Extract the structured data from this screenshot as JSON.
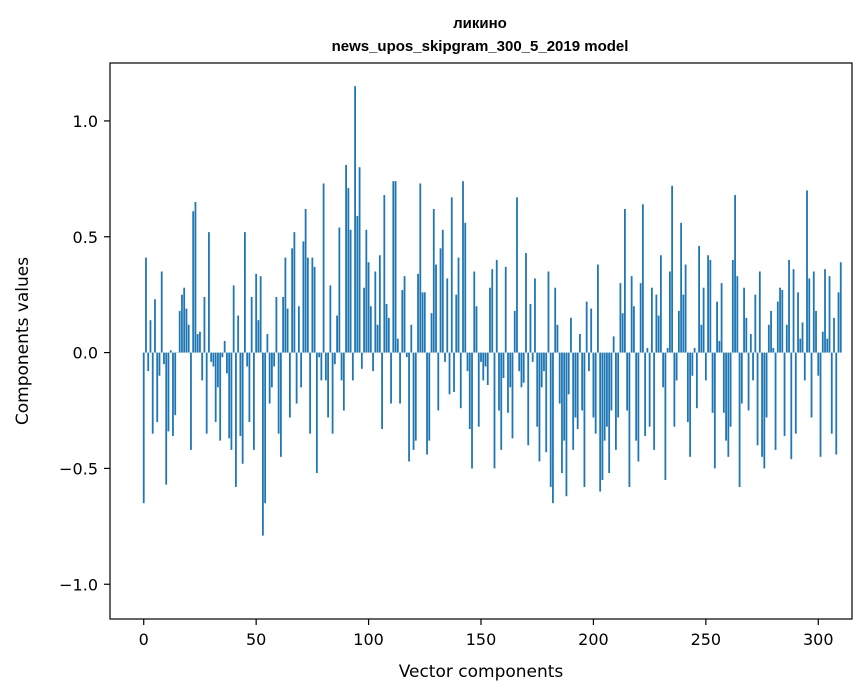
{
  "chart_data": {
    "type": "bar",
    "title": "ликино",
    "subtitle": "news_upos_skipgram_300_5_2019 model",
    "xlabel": "Vector components",
    "ylabel": "Components values",
    "xlim": [
      -15,
      315
    ],
    "ylim": [
      -1.15,
      1.25
    ],
    "xticks": [
      0,
      50,
      100,
      150,
      200,
      250,
      300
    ],
    "xtick_labels": [
      "0",
      "50",
      "100",
      "150",
      "200",
      "250",
      "300"
    ],
    "yticks": [
      -1.0,
      -0.5,
      0.0,
      0.5,
      1.0
    ],
    "ytick_labels": [
      "−1.0",
      "−0.5",
      "0.0",
      "0.5",
      "1.0"
    ],
    "grid": false,
    "bar_color": "#1f77b4",
    "values": [
      -0.65,
      0.41,
      -0.08,
      0.14,
      -0.35,
      0.23,
      -0.3,
      -0.1,
      0.35,
      -0.05,
      -0.57,
      -0.34,
      0.01,
      -0.36,
      -0.27,
      0.0,
      0.18,
      0.25,
      0.28,
      0.19,
      0.12,
      -0.42,
      0.61,
      0.65,
      0.08,
      0.09,
      -0.12,
      0.24,
      -0.35,
      0.52,
      -0.04,
      -0.06,
      -0.3,
      -0.15,
      -0.38,
      -0.02,
      0.05,
      -0.09,
      -0.37,
      -0.42,
      0.29,
      -0.58,
      0.16,
      -0.36,
      -0.48,
      0.52,
      -0.06,
      -0.3,
      0.24,
      -0.42,
      0.34,
      0.14,
      0.33,
      -0.79,
      -0.65,
      0.08,
      -0.22,
      -0.15,
      -0.06,
      0.24,
      -0.35,
      -0.45,
      0.24,
      0.41,
      0.19,
      -0.28,
      0.45,
      0.52,
      -0.22,
      0.2,
      -0.15,
      0.48,
      0.62,
      0.41,
      -0.35,
      0.41,
      0.37,
      -0.52,
      -0.02,
      -0.12,
      0.73,
      -0.12,
      -0.28,
      0.29,
      -0.35,
      -0.05,
      0.16,
      0.54,
      -0.12,
      -0.25,
      0.81,
      0.71,
      0.53,
      -0.12,
      1.15,
      0.59,
      0.8,
      -0.07,
      0.28,
      0.53,
      0.39,
      0.2,
      -0.08,
      0.35,
      0.12,
      0.42,
      -0.33,
      0.68,
      0.21,
      0.15,
      -0.22,
      0.74,
      0.74,
      0.06,
      -0.22,
      0.27,
      0.33,
      -0.02,
      -0.47,
      0.12,
      -0.42,
      -0.38,
      0.34,
      0.73,
      0.26,
      0.26,
      -0.44,
      -0.38,
      0.17,
      0.62,
      0.38,
      -0.25,
      0.45,
      0.53,
      -0.04,
      0.32,
      -0.18,
      0.67,
      -0.17,
      0.25,
      0.41,
      -0.24,
      0.74,
      0.56,
      -0.08,
      -0.33,
      -0.5,
      0.35,
      0.2,
      -0.32,
      -0.04,
      -0.12,
      -0.06,
      -0.14,
      0.28,
      0.36,
      -0.5,
      0.4,
      -0.25,
      -0.42,
      -0.11,
      0.37,
      -0.26,
      -0.15,
      -0.37,
      0.18,
      0.67,
      -0.08,
      -0.15,
      -0.13,
      0.43,
      -0.4,
      0.21,
      -0.04,
      0.32,
      -0.32,
      -0.47,
      -0.15,
      -0.08,
      -0.43,
      0.35,
      -0.58,
      -0.65,
      0.28,
      0.12,
      -0.22,
      -0.52,
      -0.38,
      -0.62,
      -0.18,
      0.15,
      -0.42,
      -0.28,
      -0.33,
      0.08,
      -0.25,
      -0.58,
      0.22,
      -0.08,
      0.19,
      -0.28,
      -0.35,
      0.38,
      -0.6,
      -0.55,
      -0.38,
      -0.32,
      -0.52,
      -0.25,
      0.07,
      -0.42,
      -0.28,
      0.3,
      0.17,
      0.62,
      -0.25,
      -0.58,
      0.33,
      0.2,
      -0.38,
      -0.47,
      0.3,
      0.64,
      -0.36,
      0.02,
      -0.32,
      0.28,
      -0.42,
      0.25,
      0.16,
      0.42,
      -0.15,
      -0.55,
      0.02,
      0.35,
      0.72,
      -0.32,
      -0.12,
      0.18,
      0.56,
      0.25,
      0.38,
      -0.3,
      -0.45,
      -0.1,
      0.02,
      -0.24,
      0.46,
      0.12,
      0.28,
      -0.12,
      0.42,
      0.4,
      -0.26,
      -0.5,
      0.22,
      0.05,
      0.3,
      -0.26,
      -0.38,
      -0.45,
      -0.32,
      0.4,
      0.68,
      0.33,
      -0.58,
      -0.22,
      0.28,
      0.15,
      -0.25,
      0.08,
      -0.12,
      0.25,
      -0.4,
      0.35,
      -0.45,
      -0.5,
      -0.28,
      0.12,
      0.18,
      0.02,
      -0.42,
      0.22,
      0.28,
      0.27,
      -0.36,
      0.12,
      0.4,
      -0.46,
      0.36,
      -0.35,
      0.26,
      0.06,
      0.13,
      -0.12,
      0.7,
      0.32,
      -0.28,
      0.35,
      0.18,
      -0.1,
      -0.45,
      0.09,
      0.36,
      0.06,
      0.33,
      -0.35,
      0.15,
      -0.44,
      0.26,
      0.39
    ]
  }
}
